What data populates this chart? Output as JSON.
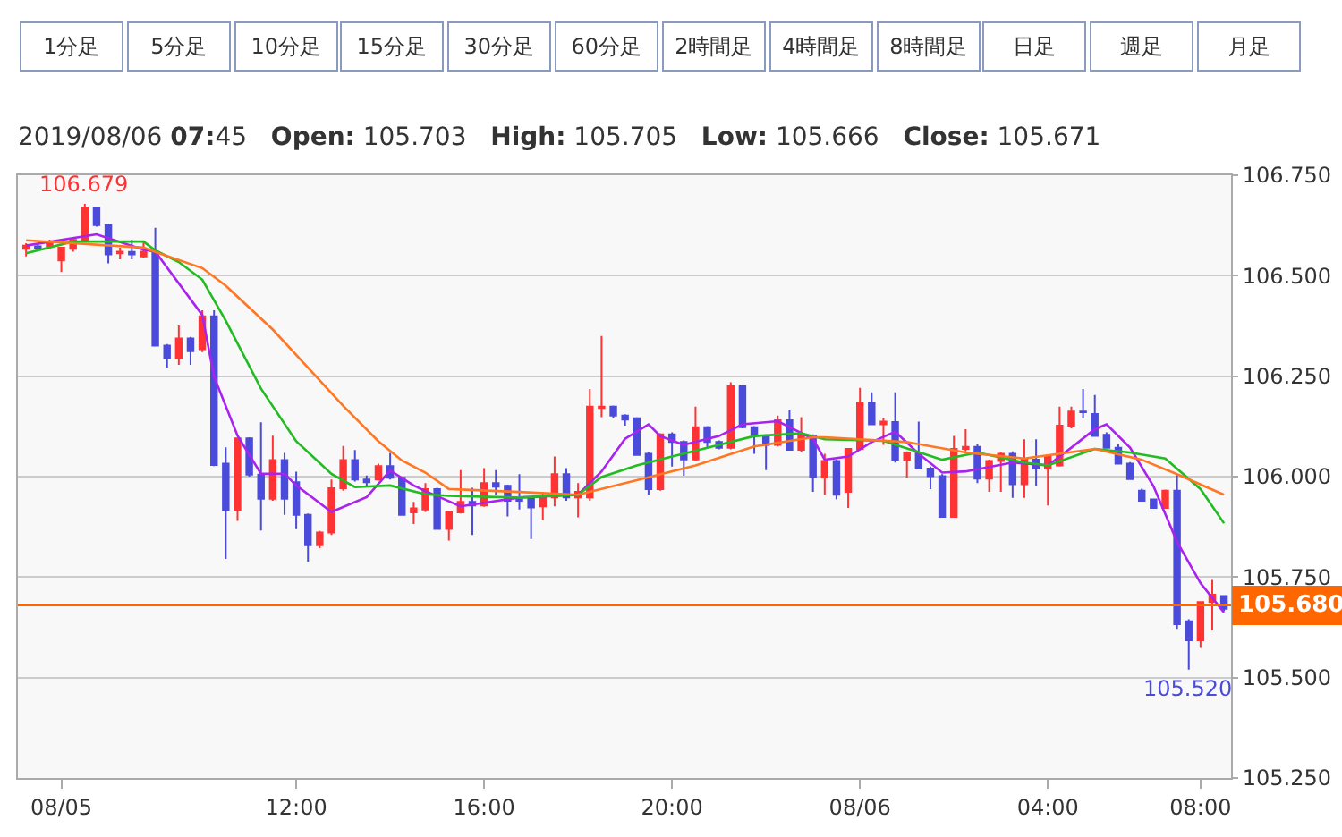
{
  "chart_data": {
    "type": "candlestick",
    "title": "2019/08/06 07:45   Open: 105.703   High: 105.705   Low: 105.666   Close: 105.671",
    "annotations": [
      "1分足",
      "5分足",
      "10分足",
      "15分足",
      "30分足",
      "60分足",
      "2時間足",
      "4時間足",
      "8時間足",
      "日足",
      "週足",
      "月足",
      {
        "text": "106.679",
        "y": 106.679
      },
      {
        "text": "105.520",
        "y": 105.52
      }
    ],
    "categories": [
      null,
      null,
      null,
      "08/05",
      null,
      null,
      null,
      null,
      null,
      null,
      null,
      null,
      null,
      null,
      null,
      null,
      null,
      null,
      null,
      null,
      null,
      null,
      null,
      "12:00",
      null,
      null,
      null,
      null,
      null,
      null,
      null,
      null,
      null,
      null,
      null,
      null,
      null,
      null,
      null,
      "16:00",
      null,
      null,
      null,
      null,
      null,
      null,
      null,
      null,
      null,
      null,
      null,
      null,
      null,
      null,
      null,
      "20:00",
      null,
      null,
      null,
      null,
      null,
      null,
      null,
      null,
      null,
      null,
      null,
      null,
      null,
      null,
      null,
      "08/06",
      null,
      null,
      null,
      null,
      null,
      null,
      null,
      null,
      null,
      null,
      null,
      null,
      null,
      null,
      null,
      "04:00",
      null,
      null,
      null,
      null,
      null,
      null,
      null,
      null,
      null,
      null,
      null,
      null,
      "08:00",
      null,
      null
    ],
    "ohlc": [
      [
        106.567,
        106.581,
        106.548,
        106.575
      ],
      [
        106.573,
        106.578,
        106.567,
        106.57
      ],
      [
        106.573,
        106.59,
        106.565,
        106.585
      ],
      [
        106.538,
        106.57,
        106.509,
        106.57
      ],
      [
        106.567,
        106.592,
        106.56,
        106.589
      ],
      [
        106.589,
        106.679,
        106.585,
        106.67
      ],
      [
        106.67,
        106.672,
        106.622,
        106.626
      ],
      [
        106.626,
        106.63,
        106.531,
        106.553
      ],
      [
        106.556,
        106.57,
        106.541,
        106.56
      ],
      [
        106.559,
        106.589,
        106.541,
        106.553
      ],
      [
        106.548,
        106.585,
        106.545,
        106.56
      ],
      [
        106.559,
        106.619,
        106.326,
        106.326
      ],
      [
        106.326,
        106.33,
        106.271,
        106.295
      ],
      [
        106.295,
        106.376,
        106.278,
        106.344
      ],
      [
        106.344,
        106.348,
        106.278,
        106.312
      ],
      [
        106.317,
        106.414,
        106.31,
        106.399
      ],
      [
        106.399,
        106.414,
        106.026,
        106.029
      ],
      [
        106.032,
        106.073,
        105.795,
        105.917
      ],
      [
        105.917,
        106.095,
        105.89,
        106.095
      ],
      [
        106.095,
        106.098,
        106.0,
        106.005
      ],
      [
        106.005,
        106.135,
        105.866,
        105.945
      ],
      [
        105.945,
        106.102,
        105.94,
        106.041
      ],
      [
        106.041,
        106.059,
        105.905,
        105.945
      ],
      [
        105.986,
        106.012,
        105.869,
        105.905
      ],
      [
        105.905,
        105.908,
        105.788,
        105.829
      ],
      [
        105.829,
        105.865,
        105.822,
        105.861
      ],
      [
        105.861,
        105.993,
        105.855,
        105.971
      ],
      [
        105.971,
        106.076,
        105.965,
        106.041
      ],
      [
        106.041,
        106.066,
        105.988,
        105.993
      ],
      [
        105.993,
        106.003,
        105.974,
        105.986
      ],
      [
        105.993,
        106.032,
        105.99,
        106.026
      ],
      [
        106.026,
        106.059,
        105.993,
        105.997
      ],
      [
        105.997,
        106.0,
        105.905,
        105.905
      ],
      [
        105.911,
        105.937,
        105.882,
        105.921
      ],
      [
        105.918,
        105.984,
        105.912,
        105.969
      ],
      [
        105.969,
        105.972,
        105.87,
        105.87
      ],
      [
        105.87,
        105.911,
        105.841,
        105.911
      ],
      [
        105.911,
        106.016,
        105.908,
        105.937
      ],
      [
        105.937,
        105.972,
        105.855,
        105.928
      ],
      [
        105.928,
        106.021,
        105.925,
        105.984
      ],
      [
        105.984,
        106.016,
        105.955,
        105.975
      ],
      [
        105.977,
        105.98,
        105.901,
        105.94
      ],
      [
        105.943,
        106.006,
        105.918,
        105.94
      ],
      [
        105.947,
        105.95,
        105.845,
        105.923
      ],
      [
        105.926,
        105.962,
        105.893,
        105.948
      ],
      [
        105.948,
        106.05,
        105.926,
        106.006
      ],
      [
        106.006,
        106.021,
        105.94,
        105.948
      ],
      [
        105.948,
        105.984,
        105.899,
        105.962
      ],
      [
        105.948,
        106.218,
        105.94,
        106.174
      ],
      [
        106.171,
        106.35,
        106.148,
        106.174
      ],
      [
        106.174,
        106.177,
        106.145,
        106.152
      ],
      [
        106.152,
        106.155,
        106.127,
        106.142
      ],
      [
        106.145,
        106.148,
        106.054,
        106.054
      ],
      [
        106.057,
        106.06,
        105.955,
        105.969
      ],
      [
        105.969,
        106.108,
        105.965,
        106.105
      ],
      [
        106.105,
        106.11,
        106.025,
        106.086
      ],
      [
        106.086,
        106.09,
        106.002,
        106.043
      ],
      [
        106.043,
        106.174,
        106.04,
        106.123
      ],
      [
        106.123,
        106.126,
        106.072,
        106.086
      ],
      [
        106.086,
        106.09,
        106.068,
        106.072
      ],
      [
        106.072,
        106.235,
        106.068,
        106.225
      ],
      [
        106.225,
        106.228,
        106.12,
        106.123
      ],
      [
        106.123,
        106.126,
        106.057,
        106.101
      ],
      [
        106.101,
        106.105,
        106.016,
        106.079
      ],
      [
        106.079,
        106.152,
        106.075,
        106.14
      ],
      [
        106.14,
        106.167,
        106.065,
        106.067
      ],
      [
        106.067,
        106.148,
        106.06,
        106.101
      ],
      [
        106.101,
        106.105,
        105.962,
        105.999
      ],
      [
        105.998,
        106.057,
        105.955,
        106.039
      ],
      [
        106.039,
        106.042,
        105.943,
        105.955
      ],
      [
        105.962,
        106.069,
        105.922,
        106.069
      ],
      [
        106.069,
        106.221,
        106.066,
        106.184
      ],
      [
        106.184,
        106.21,
        106.13,
        106.13
      ],
      [
        106.13,
        106.147,
        106.079,
        106.137
      ],
      [
        106.136,
        106.21,
        106.035,
        106.042
      ],
      [
        106.042,
        106.063,
        105.998,
        106.06
      ],
      [
        106.06,
        106.137,
        106.02,
        106.02
      ],
      [
        106.02,
        106.025,
        105.969,
        106.001
      ],
      [
        106.001,
        106.006,
        105.9,
        105.9
      ],
      [
        105.9,
        106.101,
        105.9,
        106.069
      ],
      [
        106.069,
        106.118,
        106.063,
        106.074
      ],
      [
        106.074,
        106.08,
        105.984,
        105.995
      ],
      [
        105.995,
        106.042,
        105.962,
        106.039
      ],
      [
        106.039,
        106.06,
        105.962,
        106.057
      ],
      [
        106.057,
        106.063,
        105.947,
        105.981
      ],
      [
        105.981,
        106.093,
        105.947,
        106.042
      ],
      [
        106.042,
        106.093,
        105.976,
        106.02
      ],
      [
        106.02,
        106.05,
        105.928,
        106.05
      ],
      [
        106.028,
        106.174,
        106.025,
        106.127
      ],
      [
        106.127,
        106.174,
        106.12,
        106.162
      ],
      [
        106.162,
        106.218,
        106.145,
        106.16
      ],
      [
        106.156,
        106.203,
        106.099,
        106.101
      ],
      [
        106.104,
        106.11,
        106.072,
        106.072
      ],
      [
        106.072,
        106.08,
        106.032,
        106.032
      ],
      [
        106.032,
        106.036,
        105.994,
        105.994
      ],
      [
        105.965,
        105.97,
        105.94,
        105.94
      ],
      [
        105.943,
        105.945,
        105.92,
        105.922
      ],
      [
        105.922,
        105.968,
        105.92,
        105.965
      ],
      [
        105.965,
        106.006,
        105.621,
        105.633
      ],
      [
        105.64,
        105.645,
        105.52,
        105.593
      ],
      [
        105.593,
        105.69,
        105.574,
        105.688
      ],
      [
        105.688,
        105.743,
        105.618,
        105.706
      ],
      [
        105.703,
        105.705,
        105.666,
        105.671
      ]
    ],
    "colors": [
      "#ff3333",
      "#4b4bdb",
      "#ff3333",
      "#ff3333",
      "#ff3333",
      "#ff3333",
      "#4b4bdb",
      "#4b4bdb",
      "#ff3333",
      "#4b4bdb",
      "#ff3333",
      "#4b4bdb",
      "#4b4bdb",
      "#ff3333",
      "#4b4bdb",
      "#ff3333",
      "#4b4bdb",
      "#4b4bdb",
      "#ff3333",
      "#4b4bdb",
      "#4b4bdb",
      "#ff3333",
      "#4b4bdb",
      "#4b4bdb",
      "#4b4bdb",
      "#ff3333",
      "#ff3333",
      "#ff3333",
      "#4b4bdb",
      "#4b4bdb",
      "#ff3333",
      "#4b4bdb",
      "#4b4bdb",
      "#ff3333",
      "#ff3333",
      "#4b4bdb",
      "#ff3333",
      "#ff3333",
      "#4b4bdb",
      "#ff3333",
      "#4b4bdb",
      "#4b4bdb",
      "#4b4bdb",
      "#4b4bdb",
      "#ff3333",
      "#ff3333",
      "#4b4bdb",
      "#ff3333",
      "#ff3333",
      "#ff3333",
      "#4b4bdb",
      "#4b4bdb",
      "#4b4bdb",
      "#4b4bdb",
      "#ff3333",
      "#4b4bdb",
      "#4b4bdb",
      "#ff3333",
      "#4b4bdb",
      "#4b4bdb",
      "#ff3333",
      "#4b4bdb",
      "#4b4bdb",
      "#4b4bdb",
      "#ff3333",
      "#4b4bdb",
      "#ff3333",
      "#4b4bdb",
      "#ff3333",
      "#4b4bdb",
      "#ff3333",
      "#ff3333",
      "#4b4bdb",
      "#ff3333",
      "#4b4bdb",
      "#ff3333",
      "#4b4bdb",
      "#4b4bdb",
      "#4b4bdb",
      "#ff3333",
      "#ff3333",
      "#4b4bdb",
      "#ff3333",
      "#ff3333",
      "#4b4bdb",
      "#ff3333",
      "#4b4bdb",
      "#ff3333",
      "#ff3333",
      "#ff3333",
      "#4b4bdb",
      "#4b4bdb",
      "#4b4bdb",
      "#4b4bdb",
      "#4b4bdb",
      "#4b4bdb",
      "#4b4bdb",
      "#ff3333",
      "#4b4bdb",
      "#4b4bdb",
      "#ff3333",
      "#ff3333",
      "#4b4bdb"
    ],
    "series": [
      {
        "type": "line",
        "color": "#aa22ee",
        "values": [
          106.575,
          null,
          null,
          null,
          null,
          null,
          106.603,
          null,
          null,
          null,
          106.565,
          106.56,
          null,
          null,
          null,
          106.402,
          106.249,
          null,
          106.102,
          null,
          106.007,
          null,
          106.007,
          105.978,
          null,
          null,
          105.912,
          null,
          null,
          105.949,
          null,
          106.015,
          null,
          105.978,
          105.964,
          null,
          null,
          105.926,
          null,
          null,
          null,
          null,
          105.948,
          null,
          null,
          null,
          null,
          105.955,
          null,
          106.013,
          null,
          106.094,
          null,
          106.13,
          106.101,
          null,
          106.079,
          null,
          null,
          106.101,
          null,
          106.13,
          null,
          null,
          106.138,
          null,
          null,
          106.094,
          106.042,
          null,
          106.05,
          null,
          106.086,
          null,
          106.112,
          null,
          106.057,
          null,
          106.01,
          null,
          106.013,
          null,
          null,
          null,
          106.035,
          null,
          null,
          106.028,
          null,
          106.072,
          null,
          106.118,
          106.13,
          null,
          106.072,
          null,
          105.976,
          null,
          105.838,
          null,
          105.735,
          null,
          105.662
        ]
      },
      {
        "type": "line",
        "color": "#22bb22",
        "values": [
          106.556,
          null,
          null,
          null,
          106.585,
          null,
          null,
          null,
          null,
          null,
          106.585,
          106.563,
          null,
          106.534,
          null,
          106.49,
          null,
          106.388,
          null,
          null,
          106.219,
          null,
          null,
          106.088,
          null,
          null,
          106.007,
          null,
          105.974,
          null,
          null,
          105.978,
          null,
          null,
          105.956,
          null,
          105.952,
          null,
          null,
          null,
          null,
          null,
          105.948,
          null,
          null,
          null,
          null,
          105.955,
          null,
          105.999,
          null,
          null,
          106.028,
          null,
          null,
          106.05,
          null,
          null,
          null,
          106.079,
          null,
          null,
          106.101,
          null,
          null,
          null,
          106.108,
          null,
          106.093,
          null,
          null,
          null,
          null,
          106.089,
          null,
          null,
          null,
          null,
          106.042,
          null,
          null,
          106.06,
          null,
          null,
          null,
          106.035,
          null,
          106.028,
          null,
          null,
          null,
          106.069,
          null,
          null,
          106.06,
          null,
          null,
          106.045,
          null,
          null,
          105.969,
          null,
          105.884
        ]
      },
      {
        "type": "line",
        "color": "#ff7722",
        "values": [
          106.588,
          null,
          null,
          null,
          null,
          null,
          null,
          null,
          null,
          null,
          106.57,
          106.559,
          null,
          null,
          null,
          106.519,
          null,
          106.475,
          null,
          null,
          null,
          106.366,
          null,
          null,
          106.271,
          null,
          null,
          106.176,
          null,
          null,
          106.088,
          null,
          106.04,
          null,
          106.01,
          null,
          105.969,
          null,
          null,
          null,
          null,
          null,
          105.962,
          null,
          null,
          null,
          null,
          105.955,
          null,
          null,
          null,
          null,
          105.991,
          null,
          null,
          null,
          null,
          106.028,
          null,
          null,
          null,
          null,
          106.075,
          null,
          null,
          null,
          null,
          106.098,
          106.098,
          null,
          null,
          null,
          null,
          null,
          null,
          106.086,
          null,
          null,
          null,
          null,
          106.06,
          null,
          null,
          null,
          null,
          106.045,
          null,
          null,
          null,
          null,
          null,
          106.069,
          null,
          null,
          null,
          106.042,
          null,
          null,
          106.006,
          null,
          null,
          null,
          105.955
        ]
      }
    ],
    "ref_lines": [
      {
        "axis": "y",
        "value": 105.68,
        "label": "105.680",
        "color": "#ff6600"
      }
    ],
    "ylim": [
      105.25,
      106.75
    ],
    "yticks": [
      {
        "value": 105.25,
        "label": "105.250"
      },
      {
        "value": 105.5,
        "label": "105.500"
      },
      {
        "value": 105.75,
        "label": "105.750"
      },
      {
        "value": 106,
        "label": "106.000"
      },
      {
        "value": 106.25,
        "label": "106.250"
      },
      {
        "value": 106.5,
        "label": "106.500"
      },
      {
        "value": 106.75,
        "label": "106.750"
      }
    ],
    "grid": "y"
  }
}
